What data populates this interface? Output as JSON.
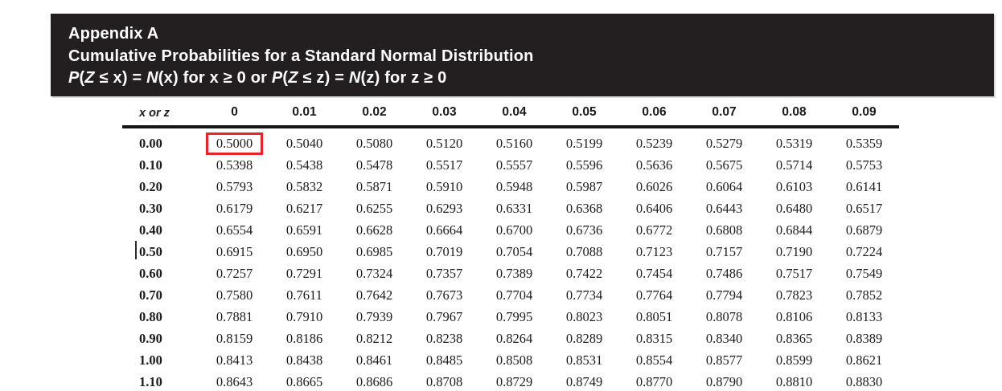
{
  "banner": {
    "title": "Appendix A",
    "subtitle": "Cumulative Probabilities for a Standard Normal Distribution",
    "formula_segments": [
      {
        "text": "P",
        "italic": true
      },
      {
        "text": "(",
        "italic": false
      },
      {
        "text": "Z",
        "italic": true
      },
      {
        "text": " ≤ x) = ",
        "italic": false
      },
      {
        "text": "N",
        "italic": true
      },
      {
        "text": "(x) for x ≥ 0 or ",
        "italic": false
      },
      {
        "text": "P",
        "italic": true
      },
      {
        "text": "(",
        "italic": false
      },
      {
        "text": "Z",
        "italic": true
      },
      {
        "text": " ≤ z) = ",
        "italic": false
      },
      {
        "text": "N",
        "italic": true
      },
      {
        "text": "(z) for z ≥ 0",
        "italic": false
      }
    ],
    "bg_color": "#231f20",
    "text_color": "#ffffff"
  },
  "table": {
    "corner_label": "x or z",
    "columns": [
      "0",
      "0.01",
      "0.02",
      "0.03",
      "0.04",
      "0.05",
      "0.06",
      "0.07",
      "0.08",
      "0.09"
    ],
    "rows": [
      {
        "label": "0.00",
        "values": [
          "0.5000",
          "0.5040",
          "0.5080",
          "0.5120",
          "0.5160",
          "0.5199",
          "0.5239",
          "0.5279",
          "0.5319",
          "0.5359"
        ]
      },
      {
        "label": "0.10",
        "values": [
          "0.5398",
          "0.5438",
          "0.5478",
          "0.5517",
          "0.5557",
          "0.5596",
          "0.5636",
          "0.5675",
          "0.5714",
          "0.5753"
        ]
      },
      {
        "label": "0.20",
        "values": [
          "0.5793",
          "0.5832",
          "0.5871",
          "0.5910",
          "0.5948",
          "0.5987",
          "0.6026",
          "0.6064",
          "0.6103",
          "0.6141"
        ]
      },
      {
        "label": "0.30",
        "values": [
          "0.6179",
          "0.6217",
          "0.6255",
          "0.6293",
          "0.6331",
          "0.6368",
          "0.6406",
          "0.6443",
          "0.6480",
          "0.6517"
        ]
      },
      {
        "label": "0.40",
        "values": [
          "0.6554",
          "0.6591",
          "0.6628",
          "0.6664",
          "0.6700",
          "0.6736",
          "0.6772",
          "0.6808",
          "0.6844",
          "0.6879"
        ]
      },
      {
        "label": "0.50",
        "values": [
          "0.6915",
          "0.6950",
          "0.6985",
          "0.7019",
          "0.7054",
          "0.7088",
          "0.7123",
          "0.7157",
          "0.7190",
          "0.7224"
        ]
      },
      {
        "label": "0.60",
        "values": [
          "0.7257",
          "0.7291",
          "0.7324",
          "0.7357",
          "0.7389",
          "0.7422",
          "0.7454",
          "0.7486",
          "0.7517",
          "0.7549"
        ]
      },
      {
        "label": "0.70",
        "values": [
          "0.7580",
          "0.7611",
          "0.7642",
          "0.7673",
          "0.7704",
          "0.7734",
          "0.7764",
          "0.7794",
          "0.7823",
          "0.7852"
        ]
      },
      {
        "label": "0.80",
        "values": [
          "0.7881",
          "0.7910",
          "0.7939",
          "0.7967",
          "0.7995",
          "0.8023",
          "0.8051",
          "0.8078",
          "0.8106",
          "0.8133"
        ]
      },
      {
        "label": "0.90",
        "values": [
          "0.8159",
          "0.8186",
          "0.8212",
          "0.8238",
          "0.8264",
          "0.8289",
          "0.8315",
          "0.8340",
          "0.8365",
          "0.8389"
        ]
      },
      {
        "label": "1.00",
        "values": [
          "0.8413",
          "0.8438",
          "0.8461",
          "0.8485",
          "0.8508",
          "0.8531",
          "0.8554",
          "0.8577",
          "0.8599",
          "0.8621"
        ]
      },
      {
        "label": "1.10",
        "values": [
          "0.8643",
          "0.8665",
          "0.8686",
          "0.8708",
          "0.8729",
          "0.8749",
          "0.8770",
          "0.8790",
          "0.8810",
          "0.8830"
        ]
      }
    ],
    "highlight": {
      "row_index": 0,
      "col_index": 0,
      "color": "#ec2227"
    }
  }
}
